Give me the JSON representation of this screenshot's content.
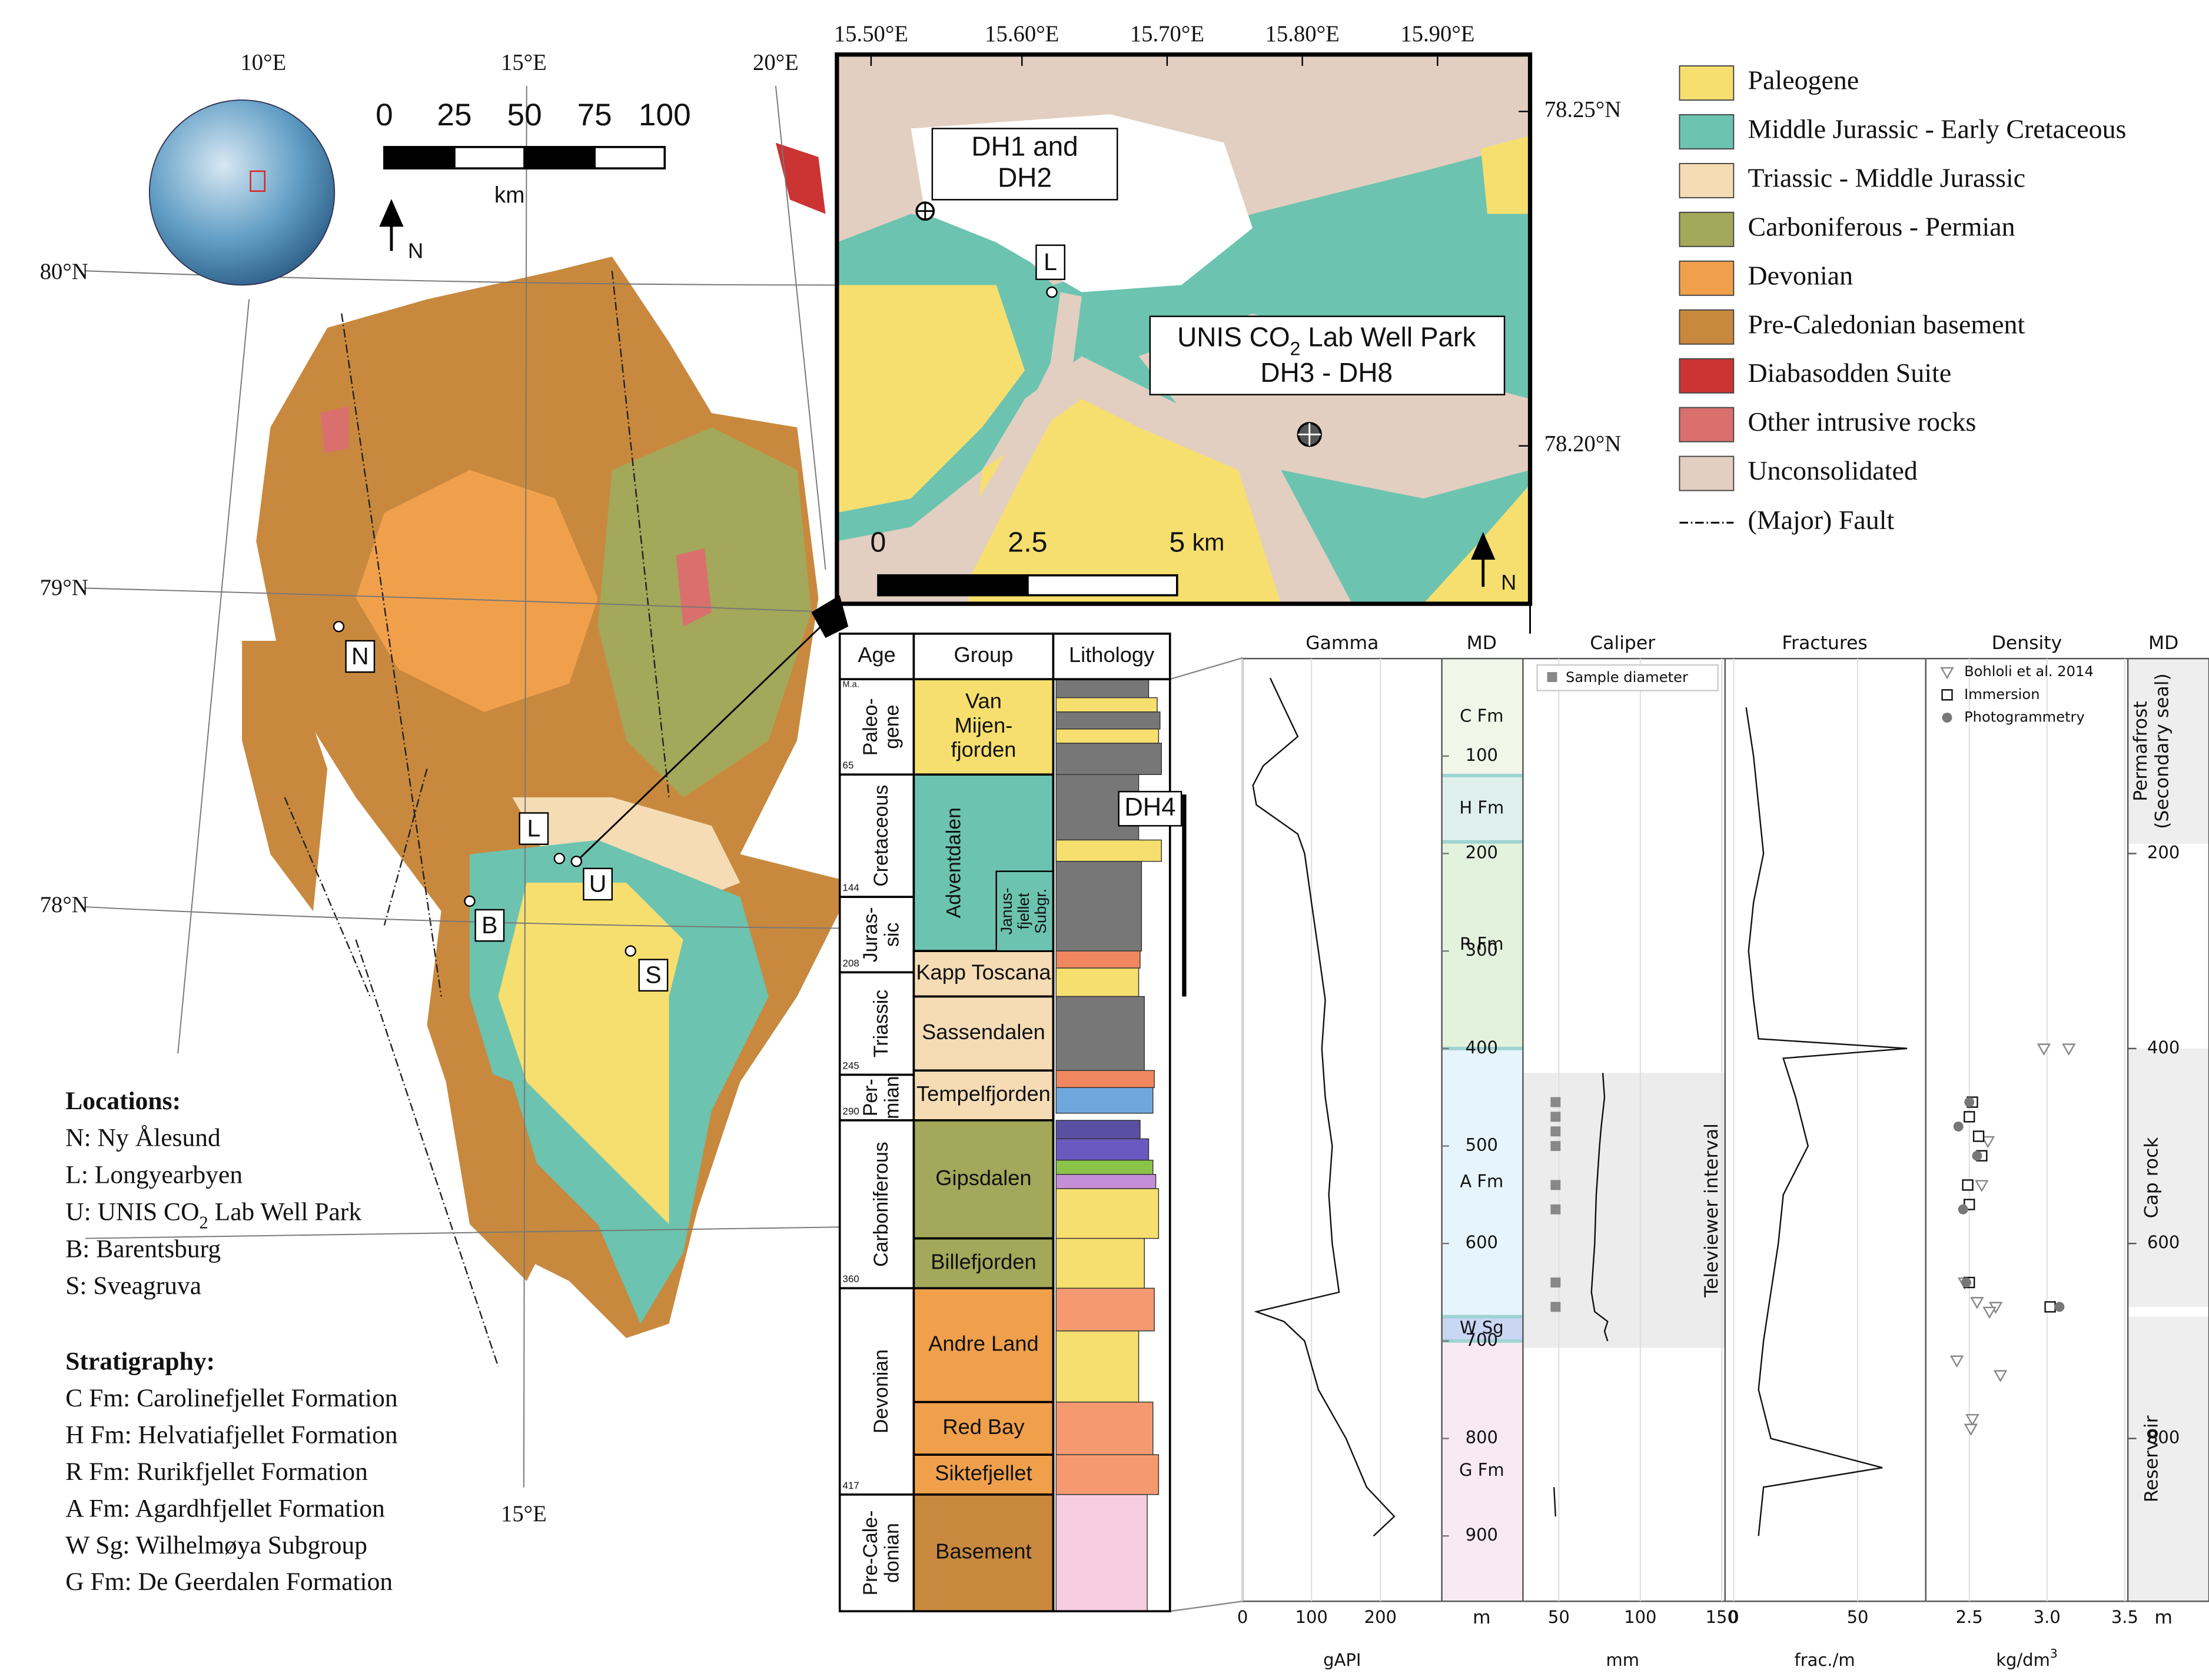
{
  "overview_map": {
    "longitudes": [
      "10°E",
      "15°E",
      "20°E"
    ],
    "bottom_longitude": "15°E",
    "latitudes": [
      "80°N",
      "79°N",
      "78°N"
    ],
    "scale_bar": {
      "ticks": [
        0,
        25,
        50,
        75,
        100
      ],
      "unit": "km",
      "north": "N"
    },
    "sites": [
      "N",
      "L",
      "U",
      "B",
      "S"
    ]
  },
  "inset_map": {
    "longitudes": [
      "15.50°E",
      "15.60°E",
      "15.70°E",
      "15.80°E",
      "15.90°E"
    ],
    "latitudes": [
      "78.25°N",
      "78.20°N"
    ],
    "dh1": [
      "DH1 and",
      "DH2"
    ],
    "site": "L",
    "park": {
      "line1": [
        "UNIS CO",
        "2",
        " Lab Well Park"
      ],
      "line2": "DH3 - DH8"
    },
    "scale_bar": {
      "ticks": [
        0,
        2.5,
        5
      ],
      "unit": "km"
    },
    "north": "N"
  },
  "legend": [
    {
      "label": "Paleogene",
      "color": "#f6df6e"
    },
    {
      "label": "Middle Jurassic - Early Cretaceous",
      "color": "#6cc3b0"
    },
    {
      "label": "Triassic - Middle Jurassic",
      "color": "#f5dcb5"
    },
    {
      "label": "Carboniferous - Permian",
      "color": "#a3a85a"
    },
    {
      "label": "Devonian",
      "color": "#f0a04b"
    },
    {
      "label": "Pre-Caledonian basement",
      "color": "#c8893e"
    },
    {
      "label": "Diabasodden Suite",
      "color": "#cc3333"
    },
    {
      "label": "Other intrusive rocks",
      "color": "#d9706e"
    },
    {
      "label": "Unconsolidated",
      "color": "#e2cfc1"
    }
  ],
  "fault_label": "(Major) Fault",
  "locations": {
    "title": "Locations:",
    "items": [
      [
        "N: Ny Ålesund"
      ],
      [
        "L: Longyearbyen"
      ],
      [
        "U: UNIS CO",
        "2",
        " Lab Well Park"
      ],
      [
        "B: Barentsburg"
      ],
      [
        "S: Sveagruva"
      ]
    ]
  },
  "stratigraphy": {
    "title": "Stratigraphy:",
    "items": [
      "C Fm: Carolinefjellet Formation",
      "H Fm: Helvatiafjellet Formation",
      "R Fm: Rurikfjellet Formation",
      "A Fm: Agardhfjellet Formation",
      "W Sg: Wilhelmøya Subgroup",
      "G Fm: De Geerdalen Formation"
    ]
  },
  "column": {
    "headers": [
      "Age",
      "Group",
      "Lithology"
    ],
    "ma_unit": "M.a.",
    "ma": [
      65,
      144,
      208,
      245,
      290,
      360,
      417
    ],
    "ages": [
      [
        "Paleo-",
        "gene"
      ],
      [
        "Cretaceous"
      ],
      [
        "Juras-",
        "sic"
      ],
      [
        "Triassic"
      ],
      [
        "Per-",
        "mian"
      ],
      [
        "Carboniferous"
      ],
      [
        "Devonian"
      ],
      [
        "Pre-Cale-",
        "donian"
      ]
    ],
    "groups": [
      [
        "Van",
        "Mijen-",
        "fjorden"
      ],
      [
        "Adventdalen"
      ],
      [
        "Kapp Toscana"
      ],
      [
        "Sassendalen"
      ],
      [
        "Tempelfjorden"
      ],
      [
        "Gipsdalen"
      ],
      [
        "Billefjorden"
      ],
      [
        "Andre Land"
      ],
      [
        "Red Bay"
      ],
      [
        "Siktefjellet"
      ],
      [
        "Basement"
      ]
    ],
    "subgroup": [
      "Janus-",
      "fjellet",
      "Subgr."
    ],
    "well": "DH4"
  },
  "logs": {
    "headers": [
      "Gamma",
      "MD",
      "Caliper",
      "Fractures",
      "Density",
      "MD"
    ],
    "md_unit": "m",
    "ylim": [
      0,
      967
    ],
    "depth_ticks": [
      100,
      200,
      300,
      400,
      500,
      600,
      700,
      800,
      900
    ],
    "right_depth_ticks": [
      200,
      400,
      600,
      800
    ],
    "formations": [
      "C Fm",
      "H Fm",
      "R Fm",
      "A Fm",
      "W Sg",
      "G Fm"
    ],
    "zones": [
      [
        "Permafrost",
        "(Secondary seal)"
      ],
      [
        "Cap rock"
      ],
      [
        "Reservoir"
      ]
    ],
    "televiewer": "Televiewer interval",
    "gamma": {
      "unit": "gAPI",
      "xlim": [
        0,
        289
      ],
      "xticks": [
        0,
        100,
        200
      ],
      "depth": [
        20,
        50,
        80,
        110,
        130,
        150,
        180,
        200,
        250,
        300,
        350,
        400,
        450,
        500,
        550,
        600,
        650,
        670,
        680,
        700,
        750,
        800,
        850,
        880,
        900
      ],
      "values": [
        40,
        60,
        80,
        30,
        15,
        20,
        80,
        90,
        100,
        110,
        120,
        115,
        120,
        130,
        125,
        130,
        140,
        20,
        60,
        90,
        110,
        150,
        180,
        220,
        190
      ]
    },
    "caliper": {
      "unit": "mm",
      "xlim": [
        28,
        152
      ],
      "xticks": [
        50,
        100,
        150
      ],
      "legend": "Sample diameter",
      "depth": [
        425,
        450,
        480,
        500,
        550,
        600,
        650,
        670,
        680,
        690,
        700,
        null,
        850,
        880
      ],
      "values": [
        77,
        78,
        76,
        75,
        73,
        72,
        70,
        72,
        80,
        78,
        80,
        null,
        47,
        48
      ],
      "samples": {
        "depth": [
          455,
          470,
          485,
          500,
          540,
          565,
          640,
          665
        ],
        "values": [
          48,
          48,
          48,
          48,
          48,
          48,
          48,
          48
        ]
      }
    },
    "fractures": {
      "unit": "frac./m",
      "xlim": [
        -3.5,
        77.5
      ],
      "xticks": [
        0,
        50
      ],
      "depth": [
        50,
        100,
        150,
        200,
        250,
        300,
        350,
        390,
        400,
        410,
        450,
        500,
        550,
        600,
        650,
        700,
        750,
        800,
        830,
        850,
        900
      ],
      "values": [
        5,
        8,
        10,
        12,
        8,
        6,
        8,
        10,
        70,
        20,
        25,
        30,
        20,
        18,
        15,
        12,
        10,
        15,
        60,
        12,
        10
      ]
    },
    "density": {
      "unit": [
        "kg/dm",
        "3"
      ],
      "xlim": [
        2.22,
        3.52
      ],
      "xticks": [
        2.5,
        {
          "value": 3,
          "label": "3.0"
        },
        3.5
      ],
      "series": [
        {
          "name": "Bohloli et al. 2014",
          "depth": [
            400,
            400,
            495,
            540,
            640,
            660,
            665,
            670,
            720,
            735,
            780,
            790
          ],
          "values": [
            2.98,
            3.14,
            2.62,
            2.58,
            2.47,
            2.55,
            2.67,
            2.63,
            2.42,
            2.7,
            2.52,
            2.51
          ]
        },
        {
          "name": "Immersion",
          "depth": [
            455,
            470,
            490,
            510,
            540,
            560,
            640,
            665
          ],
          "values": [
            2.52,
            2.5,
            2.56,
            2.58,
            2.49,
            2.5,
            2.5,
            3.02
          ]
        },
        {
          "name": "Photogrammetry",
          "depth": [
            455,
            480,
            510,
            565,
            640,
            665
          ],
          "values": [
            2.5,
            2.43,
            2.55,
            2.46,
            2.48,
            3.08
          ]
        }
      ]
    }
  }
}
